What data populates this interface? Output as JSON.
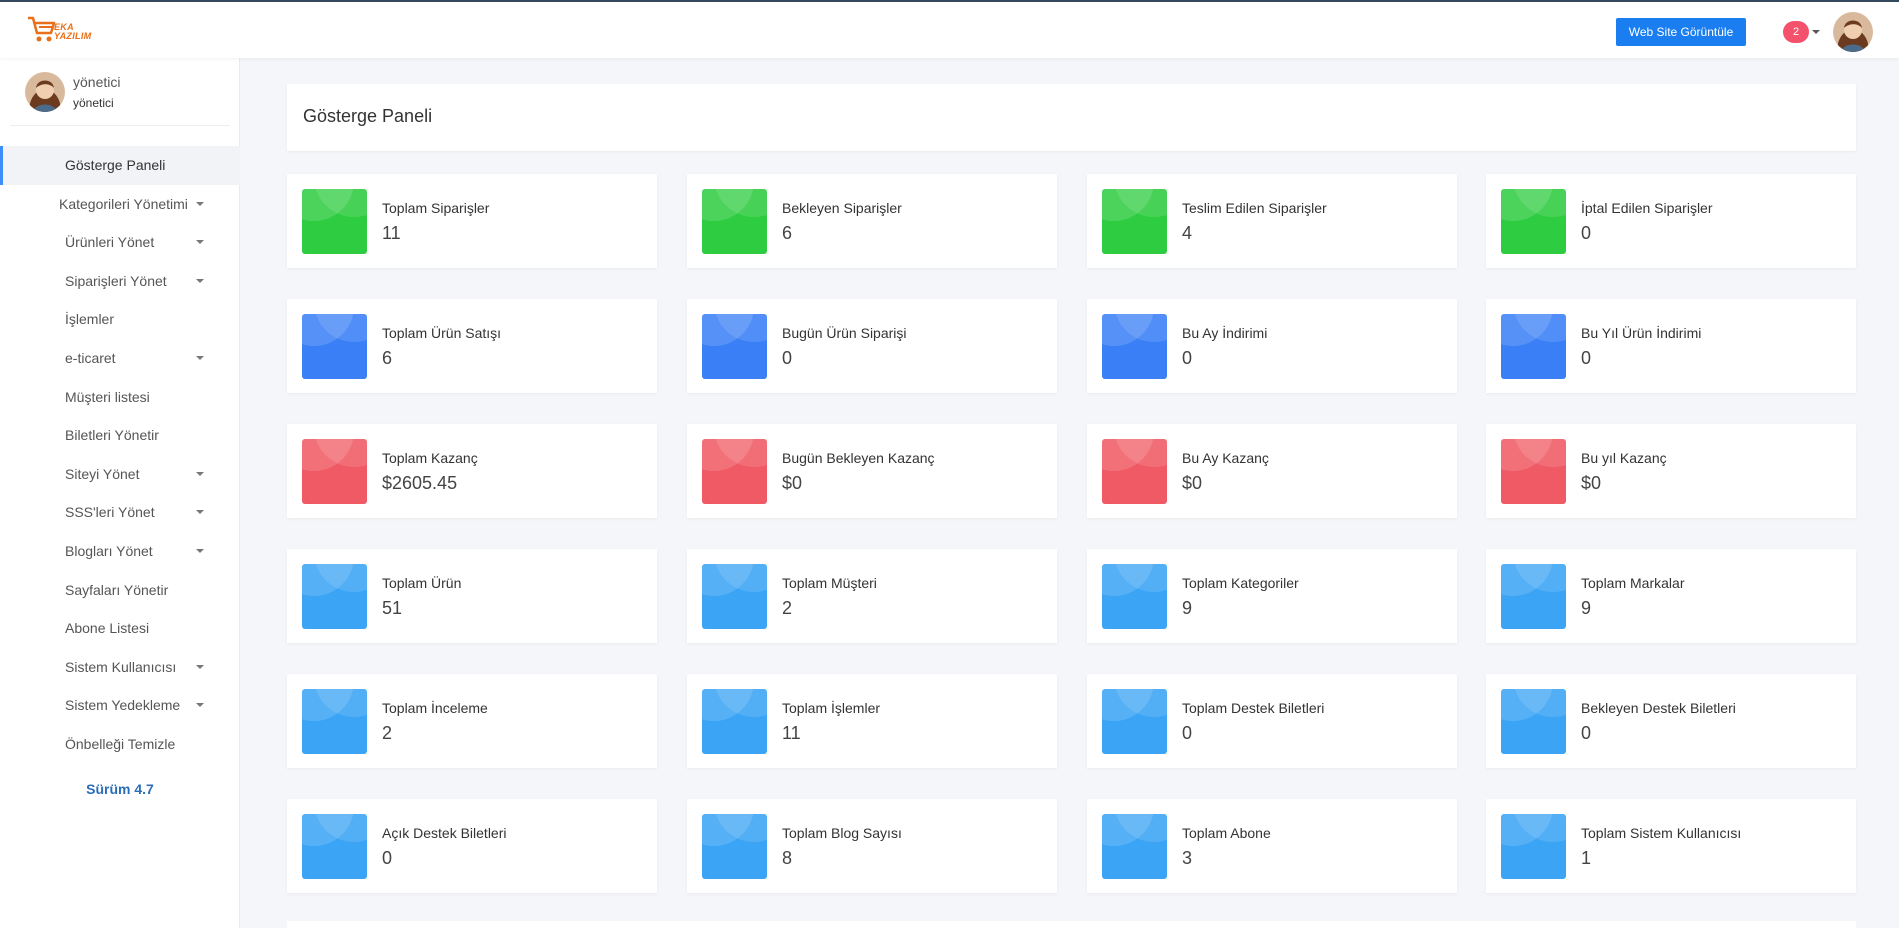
{
  "header": {
    "logo_text_line1": "EKA",
    "logo_text_line2": "YAZILIM",
    "view_site_label": "Web Site Görüntüle",
    "notification_count": "2"
  },
  "user": {
    "name": "yönetici",
    "role": "yönetici"
  },
  "sidebar": {
    "items": [
      {
        "label": "Gösterge Paneli",
        "active": true,
        "dropdown": false
      },
      {
        "label": "Kategorileri Yönetimi",
        "active": false,
        "dropdown": true
      },
      {
        "label": "Ürünleri Yönet",
        "active": false,
        "dropdown": true
      },
      {
        "label": "Siparişleri Yönet",
        "active": false,
        "dropdown": true
      },
      {
        "label": "İşlemler",
        "active": false,
        "dropdown": false
      },
      {
        "label": "e-ticaret",
        "active": false,
        "dropdown": true
      },
      {
        "label": "Müşteri listesi",
        "active": false,
        "dropdown": false
      },
      {
        "label": "Biletleri Yönetir",
        "active": false,
        "dropdown": false
      },
      {
        "label": "Siteyi Yönet",
        "active": false,
        "dropdown": true
      },
      {
        "label": "SSS'leri Yönet",
        "active": false,
        "dropdown": true
      },
      {
        "label": "Blogları Yönet",
        "active": false,
        "dropdown": true
      },
      {
        "label": "Sayfaları Yönetir",
        "active": false,
        "dropdown": false
      },
      {
        "label": "Abone Listesi",
        "active": false,
        "dropdown": false
      },
      {
        "label": "Sistem Kullanıcısı",
        "active": false,
        "dropdown": true
      },
      {
        "label": "Sistem Yedekleme",
        "active": false,
        "dropdown": true
      },
      {
        "label": "Önbelleği Temizle",
        "active": false,
        "dropdown": false
      }
    ],
    "version": "Sürüm 4.7"
  },
  "page": {
    "title": "Gösterge Paneli"
  },
  "colors": {
    "green": "#2ecc40",
    "blue": "#3a7ff6",
    "red": "#f05a64",
    "light_blue": "#3ba4f5",
    "primary_button": "#1a7ef0"
  },
  "stats": [
    [
      {
        "label": "Toplam Siparişler",
        "value": "11",
        "color": "#2ecc40"
      },
      {
        "label": "Bekleyen Siparişler",
        "value": "6",
        "color": "#2ecc40"
      },
      {
        "label": "Teslim Edilen Siparişler",
        "value": "4",
        "color": "#2ecc40"
      },
      {
        "label": "İptal Edilen Siparişler",
        "value": "0",
        "color": "#2ecc40"
      }
    ],
    [
      {
        "label": "Toplam Ürün Satışı",
        "value": "6",
        "color": "#3a7ff6"
      },
      {
        "label": "Bugün Ürün Siparişi",
        "value": "0",
        "color": "#3a7ff6"
      },
      {
        "label": "Bu Ay İndirimi",
        "value": "0",
        "color": "#3a7ff6"
      },
      {
        "label": "Bu Yıl Ürün İndirimi",
        "value": "0",
        "color": "#3a7ff6"
      }
    ],
    [
      {
        "label": "Toplam Kazanç",
        "value": "$2605.45",
        "color": "#f05a64"
      },
      {
        "label": "Bugün Bekleyen Kazanç",
        "value": "$0",
        "color": "#f05a64"
      },
      {
        "label": "Bu Ay Kazanç",
        "value": "$0",
        "color": "#f05a64"
      },
      {
        "label": "Bu yıl Kazanç",
        "value": "$0",
        "color": "#f05a64"
      }
    ],
    [
      {
        "label": "Toplam Ürün",
        "value": "51",
        "color": "#3ba4f5"
      },
      {
        "label": "Toplam Müşteri",
        "value": "2",
        "color": "#3ba4f5"
      },
      {
        "label": "Toplam Kategoriler",
        "value": "9",
        "color": "#3ba4f5"
      },
      {
        "label": "Toplam Markalar",
        "value": "9",
        "color": "#3ba4f5"
      }
    ],
    [
      {
        "label": "Toplam İnceleme",
        "value": "2",
        "color": "#3ba4f5"
      },
      {
        "label": "Toplam İşlemler",
        "value": "11",
        "color": "#3ba4f5"
      },
      {
        "label": "Toplam Destek Biletleri",
        "value": "0",
        "color": "#3ba4f5"
      },
      {
        "label": "Bekleyen Destek Biletleri",
        "value": "0",
        "color": "#3ba4f5"
      }
    ],
    [
      {
        "label": "Açık Destek Biletleri",
        "value": "0",
        "color": "#3ba4f5"
      },
      {
        "label": "Toplam Blog Sayısı",
        "value": "8",
        "color": "#3ba4f5"
      },
      {
        "label": "Toplam Abone",
        "value": "3",
        "color": "#3ba4f5"
      },
      {
        "label": "Toplam Sistem Kullanıcısı",
        "value": "1",
        "color": "#3ba4f5"
      }
    ]
  ]
}
